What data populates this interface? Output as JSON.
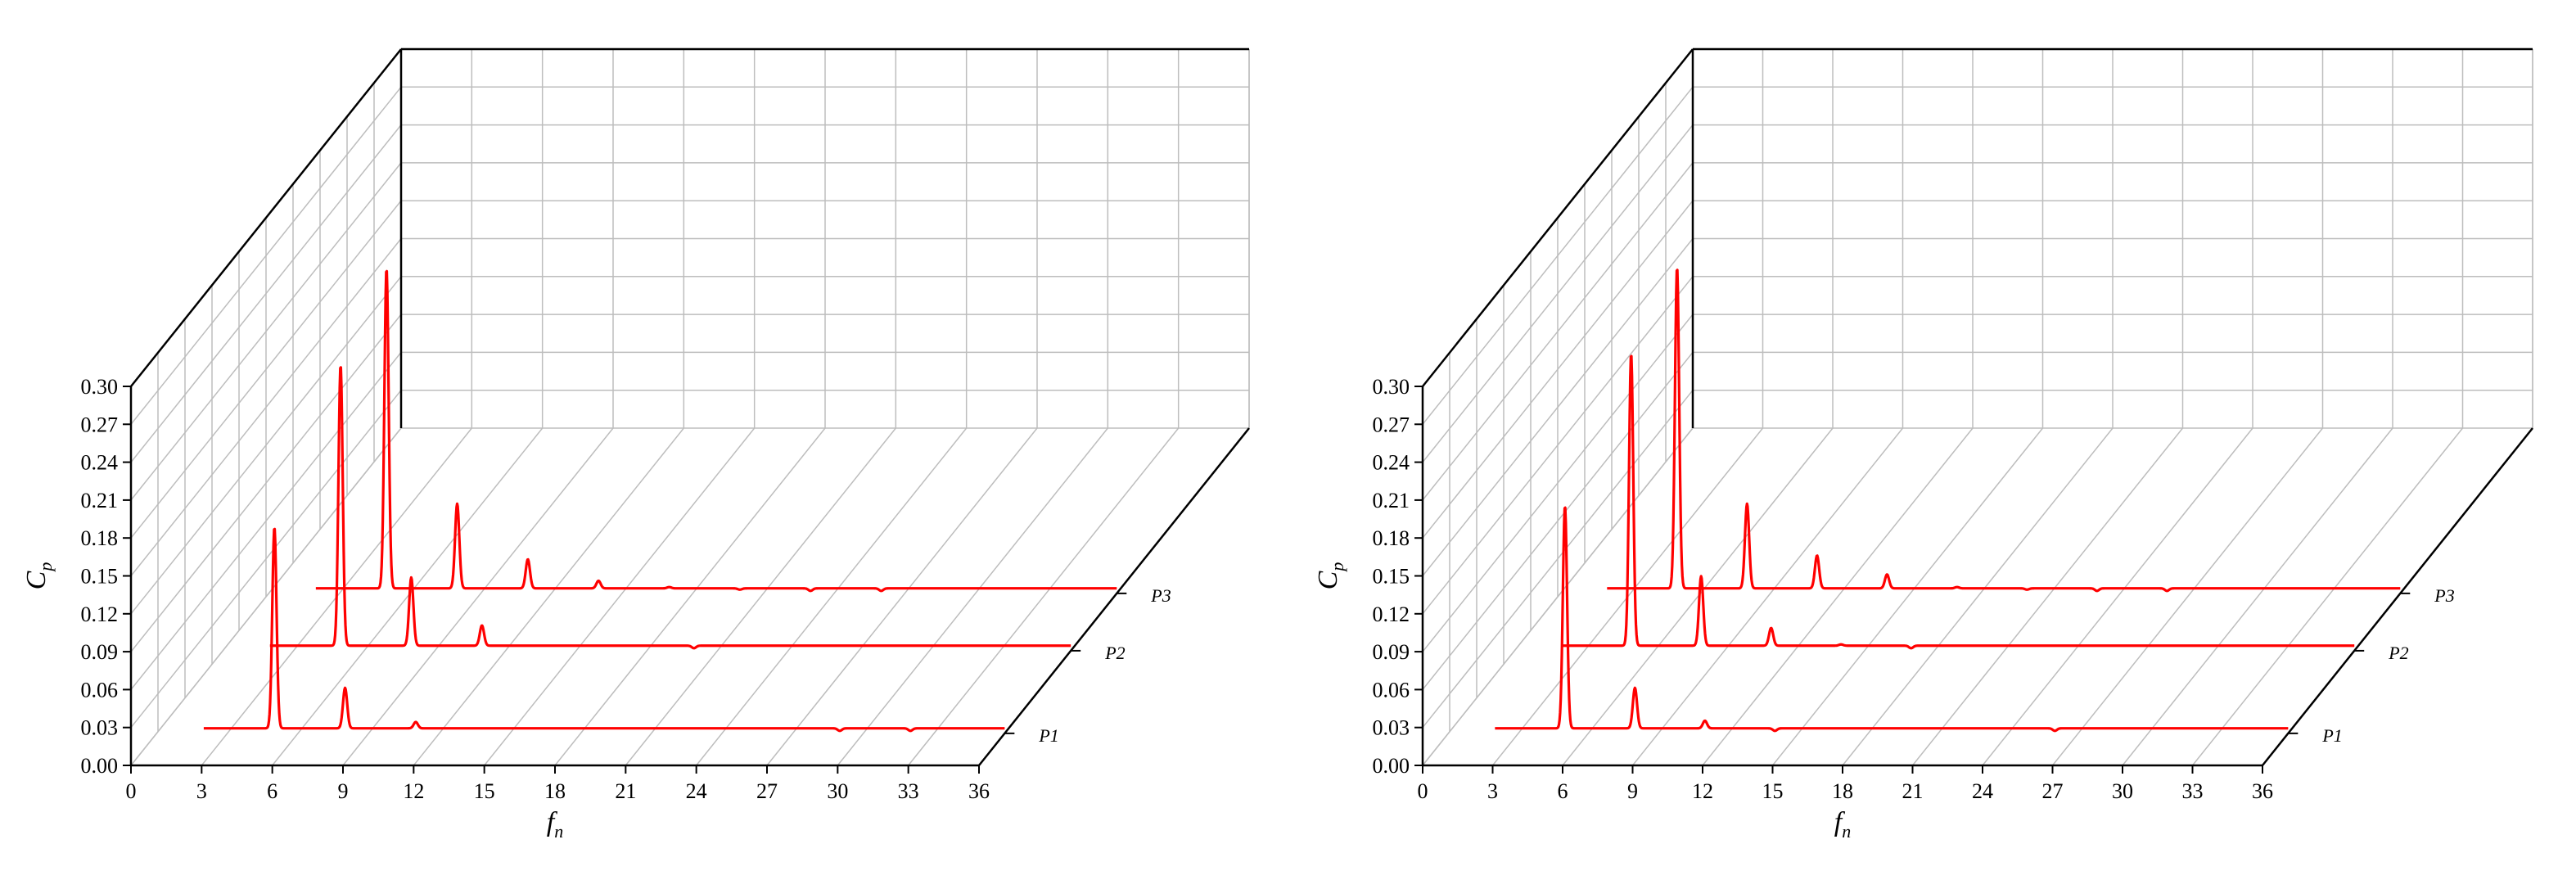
{
  "chart_data": [
    {
      "type": "line",
      "subtype": "3d-waterfall",
      "title": "",
      "xlabel_main": "f",
      "xlabel_sub": "n",
      "ylabel_main": "C",
      "ylabel_sub": "p",
      "xlim": [
        0,
        36
      ],
      "ylim": [
        0,
        0.3
      ],
      "xticks": [
        "0",
        "3",
        "6",
        "9",
        "12",
        "15",
        "18",
        "21",
        "24",
        "27",
        "30",
        "33",
        "36"
      ],
      "yticks": [
        "0.00",
        "0.03",
        "0.06",
        "0.09",
        "0.12",
        "0.15",
        "0.18",
        "0.21",
        "0.24",
        "0.27",
        "0.30"
      ],
      "grid": true,
      "line_color": "#ff0000",
      "series": [
        {
          "name": "P1",
          "baseline": 0.004,
          "x_start": 2,
          "x_end": 36,
          "peaks": [
            {
              "x": 5,
              "y": 0.163
            },
            {
              "x": 8,
              "y": 0.036
            },
            {
              "x": 11,
              "y": 0.009
            },
            {
              "x": 29,
              "y": 0.002
            },
            {
              "x": 32,
              "y": 0.002
            }
          ]
        },
        {
          "name": "P2",
          "baseline": 0.004,
          "x_start": 2,
          "x_end": 36,
          "peaks": [
            {
              "x": 5,
              "y": 0.226
            },
            {
              "x": 8,
              "y": 0.058
            },
            {
              "x": 11,
              "y": 0.02
            },
            {
              "x": 14,
              "y": 0.004
            },
            {
              "x": 20,
              "y": 0.002
            }
          ]
        },
        {
          "name": "P3",
          "baseline": 0.004,
          "x_start": 2,
          "x_end": 36,
          "peaks": [
            {
              "x": 5,
              "y": 0.257
            },
            {
              "x": 8,
              "y": 0.071
            },
            {
              "x": 11,
              "y": 0.027
            },
            {
              "x": 14,
              "y": 0.01
            },
            {
              "x": 17,
              "y": 0.005
            },
            {
              "x": 20,
              "y": 0.003
            },
            {
              "x": 23,
              "y": 0.002
            },
            {
              "x": 26,
              "y": 0.002
            }
          ]
        }
      ]
    },
    {
      "type": "line",
      "subtype": "3d-waterfall",
      "title": "",
      "xlabel_main": "f",
      "xlabel_sub": "n",
      "ylabel_main": "C",
      "ylabel_sub": "p",
      "xlim": [
        0,
        36
      ],
      "ylim": [
        0,
        0.3
      ],
      "xticks": [
        "0",
        "3",
        "6",
        "9",
        "12",
        "15",
        "18",
        "21",
        "24",
        "27",
        "30",
        "33",
        "36"
      ],
      "yticks": [
        "0.00",
        "0.03",
        "0.06",
        "0.09",
        "0.12",
        "0.15",
        "0.18",
        "0.21",
        "0.24",
        "0.27",
        "0.30"
      ],
      "grid": true,
      "line_color": "#ff0000",
      "series": [
        {
          "name": "P1",
          "baseline": 0.004,
          "x_start": 2,
          "x_end": 36,
          "peaks": [
            {
              "x": 5,
              "y": 0.18
            },
            {
              "x": 8,
              "y": 0.036
            },
            {
              "x": 11,
              "y": 0.01
            },
            {
              "x": 14,
              "y": 0.002
            },
            {
              "x": 26,
              "y": 0.002
            }
          ]
        },
        {
          "name": "P2",
          "baseline": 0.004,
          "x_start": 2,
          "x_end": 36,
          "peaks": [
            {
              "x": 5,
              "y": 0.235
            },
            {
              "x": 8,
              "y": 0.059
            },
            {
              "x": 11,
              "y": 0.018
            },
            {
              "x": 14,
              "y": 0.005
            },
            {
              "x": 17,
              "y": 0.002
            }
          ]
        },
        {
          "name": "P3",
          "baseline": 0.004,
          "x_start": 2,
          "x_end": 36,
          "peaks": [
            {
              "x": 5,
              "y": 0.258
            },
            {
              "x": 8,
              "y": 0.071
            },
            {
              "x": 11,
              "y": 0.03
            },
            {
              "x": 14,
              "y": 0.015
            },
            {
              "x": 17,
              "y": 0.005
            },
            {
              "x": 20,
              "y": 0.003
            },
            {
              "x": 23,
              "y": 0.002
            },
            {
              "x": 26,
              "y": 0.002
            }
          ]
        }
      ]
    }
  ]
}
